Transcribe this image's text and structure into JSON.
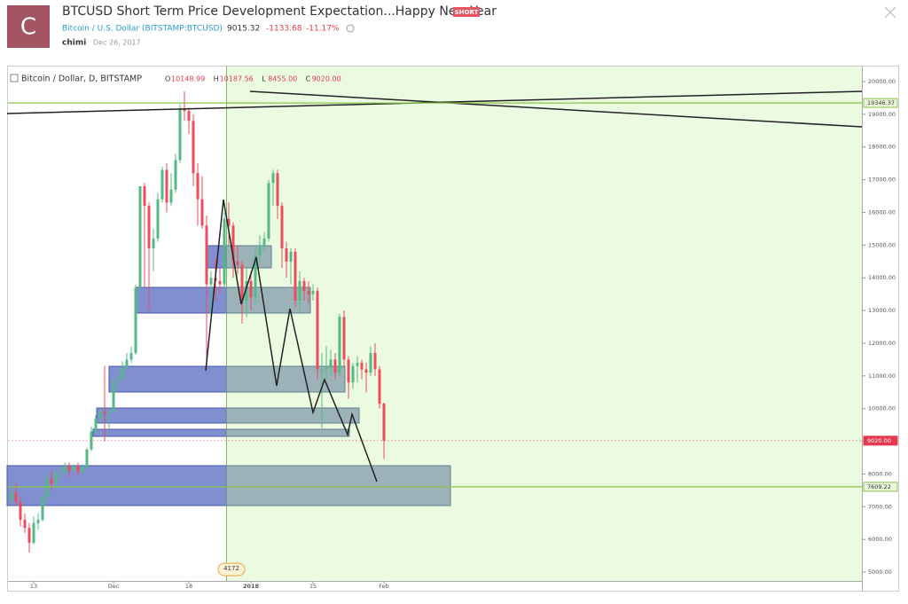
{
  "header": {
    "avatar": "C",
    "title": "BTCUSD Short Term Price Development Expectation...Happy New Year",
    "badge": "SHORT",
    "symbol": "Bitcoin / U.S. Dollar (BITSTAMP:BTCUSD)",
    "price": "9015.32",
    "change": "-1133.68",
    "change_pct": "-11.17%",
    "author": "chimi",
    "date": "Dec 26, 2017"
  },
  "chart_data": {
    "type": "candlestick",
    "series": [
      {
        "name": "Bitcoin / Dollar, D, BITSTAMP",
        "up_color": "#53b987",
        "down_color": "#eb4d5c",
        "ohlc_legend": [
          [
            "O",
            "10148.99"
          ],
          [
            "H",
            "10187.56"
          ],
          [
            "L",
            "8455.00"
          ],
          [
            "C",
            "9020.00"
          ]
        ],
        "ohlc": [
          [
            7200,
            7600,
            7050,
            7450
          ],
          [
            7450,
            7700,
            7050,
            7150
          ],
          [
            7150,
            7300,
            6400,
            6600
          ],
          [
            6600,
            6800,
            6200,
            6350
          ],
          [
            6350,
            6500,
            5600,
            5900
          ],
          [
            5900,
            6700,
            5850,
            6500
          ],
          [
            6500,
            6800,
            6300,
            6600
          ],
          [
            6600,
            7400,
            6550,
            7300
          ],
          [
            7300,
            8000,
            7200,
            7850
          ],
          [
            7850,
            8100,
            7500,
            7700
          ],
          [
            7700,
            8100,
            7600,
            8000
          ],
          [
            8000,
            8150,
            7900,
            8050
          ],
          [
            8050,
            8350,
            8000,
            8250
          ],
          [
            8250,
            8350,
            7900,
            8100
          ],
          [
            8100,
            8300,
            8050,
            8250
          ],
          [
            8250,
            8350,
            7950,
            8050
          ],
          [
            8050,
            8300,
            8000,
            8200
          ],
          [
            8200,
            8800,
            8150,
            8750
          ],
          [
            8750,
            9450,
            8700,
            9300
          ],
          [
            9300,
            9800,
            9250,
            9700
          ],
          [
            9700,
            9950,
            9600,
            9900
          ],
          [
            9900,
            11300,
            9000,
            9850
          ],
          [
            9850,
            10000,
            9400,
            9900
          ],
          [
            9900,
            10950,
            9850,
            10850
          ],
          [
            10850,
            11150,
            10700,
            10900
          ],
          [
            10900,
            11450,
            10850,
            11250
          ],
          [
            11250,
            11700,
            11200,
            11500
          ],
          [
            11500,
            11900,
            11400,
            11700
          ],
          [
            11700,
            13800,
            11650,
            13700
          ],
          [
            13700,
            16800,
            13600,
            16800
          ],
          [
            16800,
            16900,
            13700,
            16200
          ],
          [
            16200,
            16300,
            13000,
            14900
          ],
          [
            14900,
            15500,
            14200,
            15200
          ],
          [
            15200,
            16600,
            15100,
            16400
          ],
          [
            16400,
            17400,
            16300,
            17300
          ],
          [
            17300,
            17500,
            16000,
            16300
          ],
          [
            16300,
            17200,
            16200,
            16700
          ],
          [
            16700,
            17800,
            16600,
            17600
          ],
          [
            17600,
            19300,
            17500,
            19150
          ],
          [
            19150,
            19700,
            18800,
            19100
          ],
          [
            19100,
            19200,
            18400,
            18800
          ],
          [
            18800,
            19000,
            16800,
            17200
          ],
          [
            17200,
            17500,
            15600,
            16400
          ],
          [
            16400,
            17100,
            15500,
            15600
          ],
          [
            15600,
            15900,
            11200,
            13800
          ],
          [
            13800,
            14200,
            12800,
            14000
          ],
          [
            14000,
            14600,
            13300,
            13900
          ],
          [
            13900,
            14300,
            13500,
            13800
          ],
          [
            13800,
            16000,
            13700,
            15800
          ],
          [
            15800,
            16300,
            15000,
            15600
          ],
          [
            15600,
            15700,
            14000,
            14500
          ],
          [
            14500,
            15000,
            14100,
            14400
          ],
          [
            14400,
            14500,
            12600,
            13300
          ],
          [
            13300,
            14300,
            12800,
            13900
          ],
          [
            13900,
            14200,
            13000,
            13400
          ],
          [
            13400,
            15000,
            13200,
            14700
          ],
          [
            14700,
            15300,
            14500,
            15000
          ],
          [
            15000,
            15400,
            14800,
            15200
          ],
          [
            15200,
            17000,
            15100,
            16900
          ],
          [
            16900,
            17300,
            16200,
            17200
          ],
          [
            17200,
            17300,
            15800,
            16200
          ],
          [
            16200,
            16300,
            14300,
            14900
          ],
          [
            14900,
            15100,
            14000,
            14500
          ],
          [
            14500,
            14900,
            13800,
            14800
          ],
          [
            14800,
            14900,
            13100,
            13300
          ],
          [
            13300,
            14200,
            13000,
            13900
          ],
          [
            13900,
            14000,
            13300,
            13600
          ],
          [
            13600,
            13900,
            13200,
            13500
          ],
          [
            13500,
            13800,
            13300,
            13600
          ],
          [
            13600,
            13700,
            10900,
            11200
          ],
          [
            11200,
            11700,
            9400,
            11200
          ],
          [
            11200,
            11900,
            10900,
            11300
          ],
          [
            11300,
            11800,
            11000,
            11500
          ],
          [
            11500,
            11700,
            10900,
            11100
          ],
          [
            11100,
            12900,
            11000,
            12800
          ],
          [
            12800,
            13000,
            11300,
            11500
          ],
          [
            11500,
            11600,
            10300,
            10800
          ],
          [
            10800,
            11400,
            10600,
            11300
          ],
          [
            11300,
            11600,
            10800,
            11400
          ],
          [
            11400,
            11500,
            10900,
            11200
          ],
          [
            11200,
            11400,
            10500,
            11100
          ],
          [
            11100,
            11900,
            11000,
            11700
          ],
          [
            11700,
            12000,
            11000,
            11200
          ],
          [
            11200,
            11300,
            10000,
            10150
          ],
          [
            10148.99,
            10187.56,
            8455,
            9020
          ]
        ]
      }
    ],
    "categories": [
      null,
      null,
      null,
      null,
      null,
      "13",
      null,
      null,
      null,
      null,
      null,
      null,
      null,
      null,
      null,
      null,
      null,
      null,
      null,
      null,
      null,
      null,
      null,
      "Dec",
      null,
      null,
      null,
      null,
      null,
      null,
      null,
      null,
      null,
      null,
      null,
      null,
      null,
      null,
      null,
      null,
      "18",
      null,
      null,
      null,
      null,
      null,
      null,
      null,
      null,
      null,
      null,
      null,
      null,
      null,
      "2018",
      null,
      null,
      null,
      null,
      null,
      null,
      null,
      null,
      null,
      null,
      null,
      null,
      null,
      "15",
      null,
      null,
      null,
      null,
      null,
      null,
      null,
      null,
      null,
      null,
      null,
      null,
      null,
      null,
      null,
      "Feb"
    ],
    "ylim": [
      4405,
      20488
    ],
    "yticks": [
      {
        "value": 5000,
        "label": "5000.00"
      },
      {
        "value": 6000,
        "label": "6000.00"
      },
      {
        "value": 7000,
        "label": "7000.00"
      },
      {
        "value": 8000,
        "label": "8000.00"
      },
      {
        "value": 9000,
        "label": "9000.00"
      },
      {
        "value": 10000,
        "label": "10000.00"
      },
      {
        "value": 11000,
        "label": "11000.00"
      },
      {
        "value": 12000,
        "label": "12000.00"
      },
      {
        "value": 13000,
        "label": "13000.00"
      },
      {
        "value": 14000,
        "label": "14000.00"
      },
      {
        "value": 15000,
        "label": "15000.00"
      },
      {
        "value": 16000,
        "label": "16000.00"
      },
      {
        "value": 17000,
        "label": "17000.00"
      },
      {
        "value": 18000,
        "label": "18000.00"
      },
      {
        "value": 19000,
        "label": "19000.00"
      },
      {
        "value": 20000,
        "label": "20000.00"
      }
    ],
    "price_lines": [
      {
        "value": 19346.37,
        "color": "#8bc34a"
      },
      {
        "value": 9020,
        "label": "9020.00",
        "color": "#e53950",
        "dashed": true
      },
      {
        "value": 7609.22,
        "color": "#8bc34a"
      }
    ],
    "annotation": "4172"
  }
}
